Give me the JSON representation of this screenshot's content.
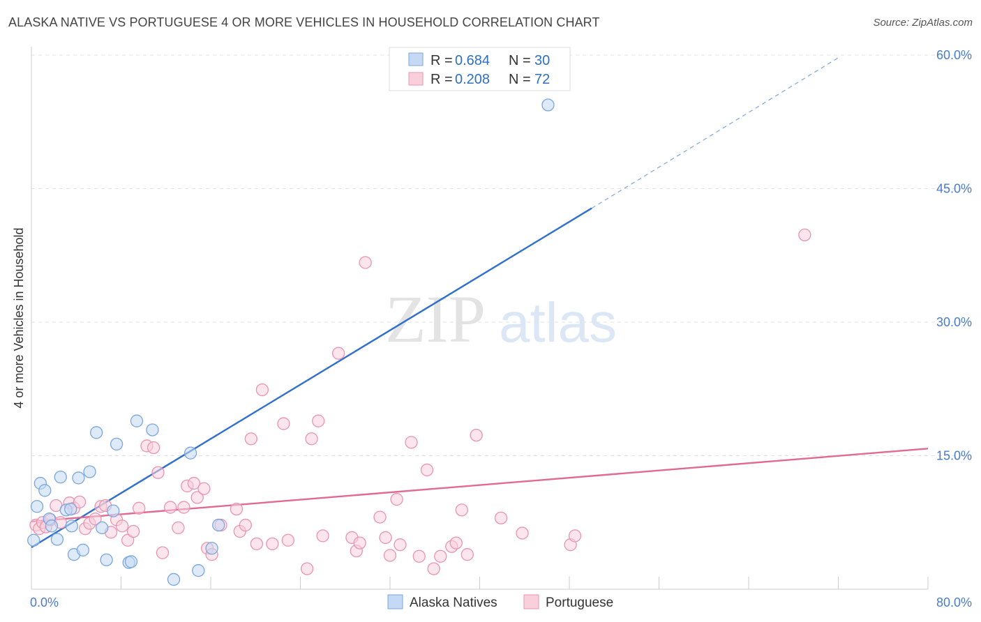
{
  "title": "ALASKA NATIVE VS PORTUGUESE 4 OR MORE VEHICLES IN HOUSEHOLD CORRELATION CHART",
  "source": "Source: ZipAtlas.com",
  "colors": {
    "blue_fill": "#c5d9f4",
    "blue_stroke": "#7aa6dd",
    "blue_line": "#2f6fce",
    "pink_fill": "#f9cfdc",
    "pink_stroke": "#e994b0",
    "pink_line": "#e06a92",
    "grid": "#e2e2e2",
    "tick_text": "#4a7bc8"
  },
  "legend": {
    "r_label": "R =",
    "n_label": "N =",
    "blue": {
      "r": "0.684",
      "n": "30"
    },
    "pink": {
      "r": "0.208",
      "n": "72"
    }
  },
  "watermark": {
    "zip": "ZIP",
    "atlas": "atlas"
  },
  "chart_data": {
    "type": "scatter",
    "title": "ALASKA NATIVE VS PORTUGUESE 4 OR MORE VEHICLES IN HOUSEHOLD CORRELATION CHART",
    "xlabel": "",
    "ylabel": "4 or more Vehicles in Household",
    "xlim": [
      0,
      80
    ],
    "ylim": [
      0,
      63
    ],
    "x_tick_labels": [
      "0.0%",
      "80.0%"
    ],
    "y_ticks": [
      15,
      30,
      45,
      60
    ],
    "y_tick_labels": [
      "15.0%",
      "30.0%",
      "45.0%",
      "60.0%"
    ],
    "series": [
      {
        "name": "Alaska Natives",
        "color": "#7aa6dd",
        "r": 0.684,
        "n": 30,
        "trend": {
          "x0": 0,
          "y0": 4.7,
          "x1": 50,
          "y1": 42.8,
          "dash_x1": 72,
          "dash_y1": 59.7
        },
        "points": [
          [
            0.2,
            5.5
          ],
          [
            0.5,
            9.3
          ],
          [
            0.8,
            11.9
          ],
          [
            1.2,
            11.1
          ],
          [
            1.6,
            7.9
          ],
          [
            1.8,
            7.1
          ],
          [
            2.3,
            5.6
          ],
          [
            2.6,
            12.6
          ],
          [
            3.1,
            8.9
          ],
          [
            3.6,
            7.1
          ],
          [
            3.8,
            3.9
          ],
          [
            4.2,
            12.5
          ],
          [
            4.6,
            4.4
          ],
          [
            5.2,
            13.2
          ],
          [
            5.8,
            17.6
          ],
          [
            6.3,
            6.9
          ],
          [
            6.7,
            3.3
          ],
          [
            7.3,
            8.8
          ],
          [
            7.6,
            16.3
          ],
          [
            8.7,
            3.0
          ],
          [
            8.9,
            3.1
          ],
          [
            9.4,
            18.9
          ],
          [
            10.8,
            17.9
          ],
          [
            12.7,
            1.1
          ],
          [
            14.2,
            15.3
          ],
          [
            14.9,
            2.1
          ],
          [
            16.1,
            4.6
          ],
          [
            16.7,
            7.2
          ],
          [
            46.1,
            54.4
          ],
          [
            3.5,
            9.0
          ]
        ]
      },
      {
        "name": "Portuguese",
        "color": "#e994b0",
        "r": 0.208,
        "n": 72,
        "trend": {
          "x0": 0,
          "y0": 7.6,
          "x1": 80,
          "y1": 15.8
        },
        "points": [
          [
            0.4,
            7.2
          ],
          [
            0.7,
            6.8
          ],
          [
            1.0,
            7.5
          ],
          [
            1.3,
            7.0
          ],
          [
            1.7,
            7.8
          ],
          [
            2.2,
            9.4
          ],
          [
            2.6,
            7.5
          ],
          [
            3.4,
            9.7
          ],
          [
            3.8,
            9.1
          ],
          [
            4.3,
            9.8
          ],
          [
            4.8,
            6.8
          ],
          [
            5.2,
            7.4
          ],
          [
            5.7,
            7.9
          ],
          [
            6.2,
            9.3
          ],
          [
            6.6,
            9.4
          ],
          [
            7.1,
            6.4
          ],
          [
            7.6,
            7.8
          ],
          [
            8.1,
            7.1
          ],
          [
            8.6,
            5.5
          ],
          [
            9.1,
            6.5
          ],
          [
            9.6,
            9.1
          ],
          [
            10.3,
            16.1
          ],
          [
            10.9,
            15.9
          ],
          [
            11.3,
            13.1
          ],
          [
            11.7,
            4.1
          ],
          [
            12.4,
            9.2
          ],
          [
            13.1,
            6.9
          ],
          [
            13.6,
            9.2
          ],
          [
            13.9,
            11.6
          ],
          [
            14.5,
            11.9
          ],
          [
            14.8,
            10.3
          ],
          [
            15.4,
            11.3
          ],
          [
            15.7,
            4.6
          ],
          [
            16.1,
            3.9
          ],
          [
            16.9,
            7.2
          ],
          [
            18.3,
            9.0
          ],
          [
            18.6,
            6.5
          ],
          [
            19.1,
            7.2
          ],
          [
            19.6,
            16.9
          ],
          [
            20.1,
            5.1
          ],
          [
            20.6,
            22.4
          ],
          [
            21.5,
            5.1
          ],
          [
            22.5,
            18.6
          ],
          [
            22.9,
            5.5
          ],
          [
            24.6,
            2.3
          ],
          [
            25.0,
            16.9
          ],
          [
            25.6,
            18.9
          ],
          [
            26.0,
            6.0
          ],
          [
            27.4,
            26.5
          ],
          [
            28.6,
            5.8
          ],
          [
            29.0,
            4.3
          ],
          [
            29.3,
            5.2
          ],
          [
            29.8,
            36.7
          ],
          [
            31.1,
            8.1
          ],
          [
            31.6,
            5.8
          ],
          [
            32.0,
            3.8
          ],
          [
            32.6,
            10.1
          ],
          [
            32.9,
            5.0
          ],
          [
            33.9,
            16.5
          ],
          [
            34.6,
            3.7
          ],
          [
            35.3,
            13.4
          ],
          [
            35.9,
            2.3
          ],
          [
            36.5,
            3.7
          ],
          [
            37.5,
            4.8
          ],
          [
            37.9,
            5.2
          ],
          [
            38.4,
            8.9
          ],
          [
            38.9,
            3.9
          ],
          [
            39.7,
            17.3
          ],
          [
            41.9,
            8.0
          ],
          [
            43.8,
            6.3
          ],
          [
            48.1,
            5.0
          ],
          [
            48.5,
            6.0
          ],
          [
            69.0,
            39.8
          ]
        ]
      }
    ]
  },
  "bottom_legend": [
    {
      "label": "Alaska Natives",
      "color": "blue"
    },
    {
      "label": "Portuguese",
      "color": "pink"
    }
  ]
}
